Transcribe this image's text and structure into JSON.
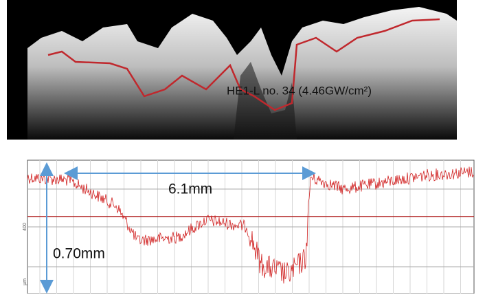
{
  "figure": {
    "surface_label": "HE1-L  no. 34 (4.46GW/cm²)",
    "width_label": "6.1mm",
    "depth_label": "0.70mm",
    "axis_tick_label": "400",
    "axis_unit_label": "µm"
  }
}
